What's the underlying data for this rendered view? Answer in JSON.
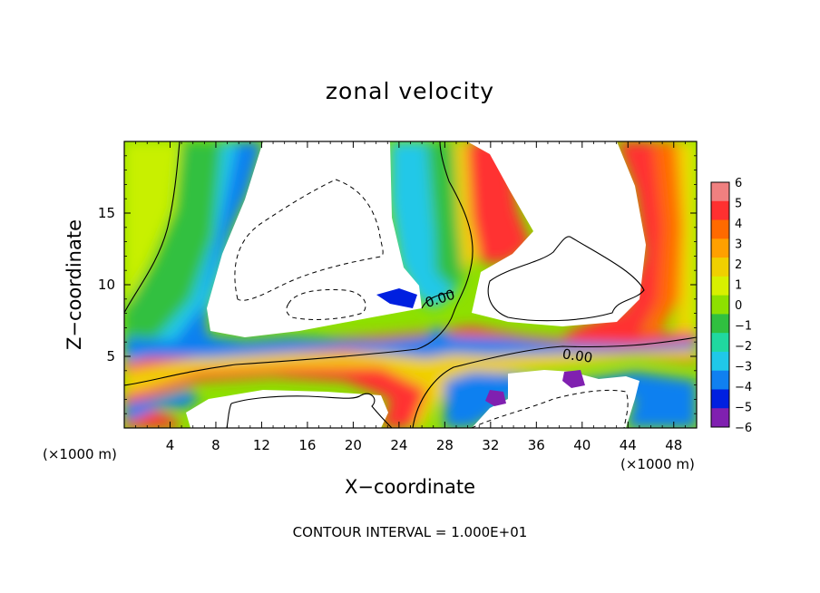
{
  "chart_data": {
    "type": "heatmap",
    "title": "zonal velocity",
    "xlabel": "X−coordinate",
    "ylabel": "Z−coordinate",
    "x_unit_label": "(×1000 m)",
    "x_unit_label_right": "(×1000 m)",
    "xlim": [
      0,
      50
    ],
    "ylim": [
      0,
      20
    ],
    "x_ticks": [
      4,
      8,
      12,
      16,
      20,
      24,
      28,
      32,
      36,
      40,
      44,
      48
    ],
    "y_ticks": [
      5,
      10,
      15
    ],
    "contour_labels": [
      "0.00",
      "0.00"
    ],
    "colorbar": {
      "levels": [
        6,
        5,
        4,
        3,
        2,
        1,
        0,
        -1,
        -2,
        -3,
        -4,
        -5,
        -6
      ],
      "colors": [
        "#f08080",
        "#ff3030",
        "#ff6a00",
        "#ffa000",
        "#f0d000",
        "#d8f000",
        "#8ee000",
        "#30c040",
        "#20d8a0",
        "#20c8e8",
        "#1080f0",
        "#0020e0",
        "#8020b0"
      ]
    },
    "footer": "CONTOUR INTERVAL = 1.000E+01"
  }
}
